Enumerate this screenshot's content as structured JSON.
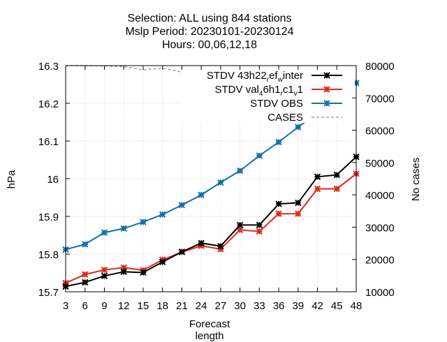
{
  "chart_data": {
    "type": "line",
    "title_lines": [
      "Selection: ALL using   844 stations",
      "Mslp   Period: 20230101-20230124",
      "Hours:  00,06,12,18"
    ],
    "xlabel": "Forecast length",
    "ylabel": "hPa",
    "y2label": "No cases",
    "x": [
      3,
      6,
      9,
      12,
      15,
      18,
      21,
      24,
      27,
      30,
      33,
      36,
      39,
      42,
      45,
      48
    ],
    "xlim": [
      3,
      48
    ],
    "ylim": [
      15.7,
      16.3
    ],
    "y2lim": [
      10000,
      80000
    ],
    "yticks": [
      "15.7",
      "15.8",
      "15.9",
      "16",
      "16.1",
      "16.2",
      "16.3"
    ],
    "y2ticks": [
      "10000",
      "20000",
      "30000",
      "40000",
      "50000",
      "60000",
      "70000",
      "80000"
    ],
    "grid": true,
    "legend_position": "top-right",
    "series": [
      {
        "name": "STDV 43h22_ref_winter",
        "name_parts": [
          [
            "STDV 43h22",
            false
          ],
          [
            "r",
            true
          ],
          [
            "ef",
            false
          ],
          [
            "w",
            true
          ],
          [
            "inter",
            false
          ]
        ],
        "color": "#000000",
        "marker": "x-star",
        "axis": "y",
        "values": [
          15.714,
          15.725,
          15.742,
          15.753,
          15.751,
          15.779,
          15.806,
          15.829,
          15.821,
          15.877,
          15.877,
          15.933,
          15.936,
          16.005,
          16.01,
          16.058
        ]
      },
      {
        "name": "STDV val_46h1_rc1_v1",
        "name_parts": [
          [
            "STDV val",
            false
          ],
          [
            "4",
            true
          ],
          [
            "6h1",
            false
          ],
          [
            "r",
            true
          ],
          [
            "c1",
            false
          ],
          [
            "v",
            true
          ],
          [
            "1",
            false
          ]
        ],
        "color": "#dd2a1a",
        "marker": "x-star",
        "axis": "y",
        "values": [
          15.723,
          15.746,
          15.758,
          15.764,
          15.757,
          15.785,
          15.805,
          15.822,
          15.813,
          15.864,
          15.86,
          15.907,
          15.907,
          15.973,
          15.973,
          16.013
        ]
      },
      {
        "name": "STDV OBS",
        "color": "#1470a8",
        "marker": "x-star",
        "axis": "y",
        "values": [
          15.812,
          15.826,
          15.857,
          15.868,
          15.885,
          15.905,
          15.93,
          15.957,
          15.99,
          16.021,
          16.061,
          16.097,
          16.137,
          16.174,
          16.216,
          16.254
        ]
      },
      {
        "name": "CASES",
        "color": "#a0a0a0",
        "marker": "none",
        "dash": true,
        "axis": "y2",
        "values": [
          80000,
          80000,
          79900,
          79700,
          78700,
          79200,
          78000,
          78000,
          77500,
          77000,
          76600,
          76300,
          76200,
          76000,
          75800,
          75500
        ]
      }
    ]
  }
}
